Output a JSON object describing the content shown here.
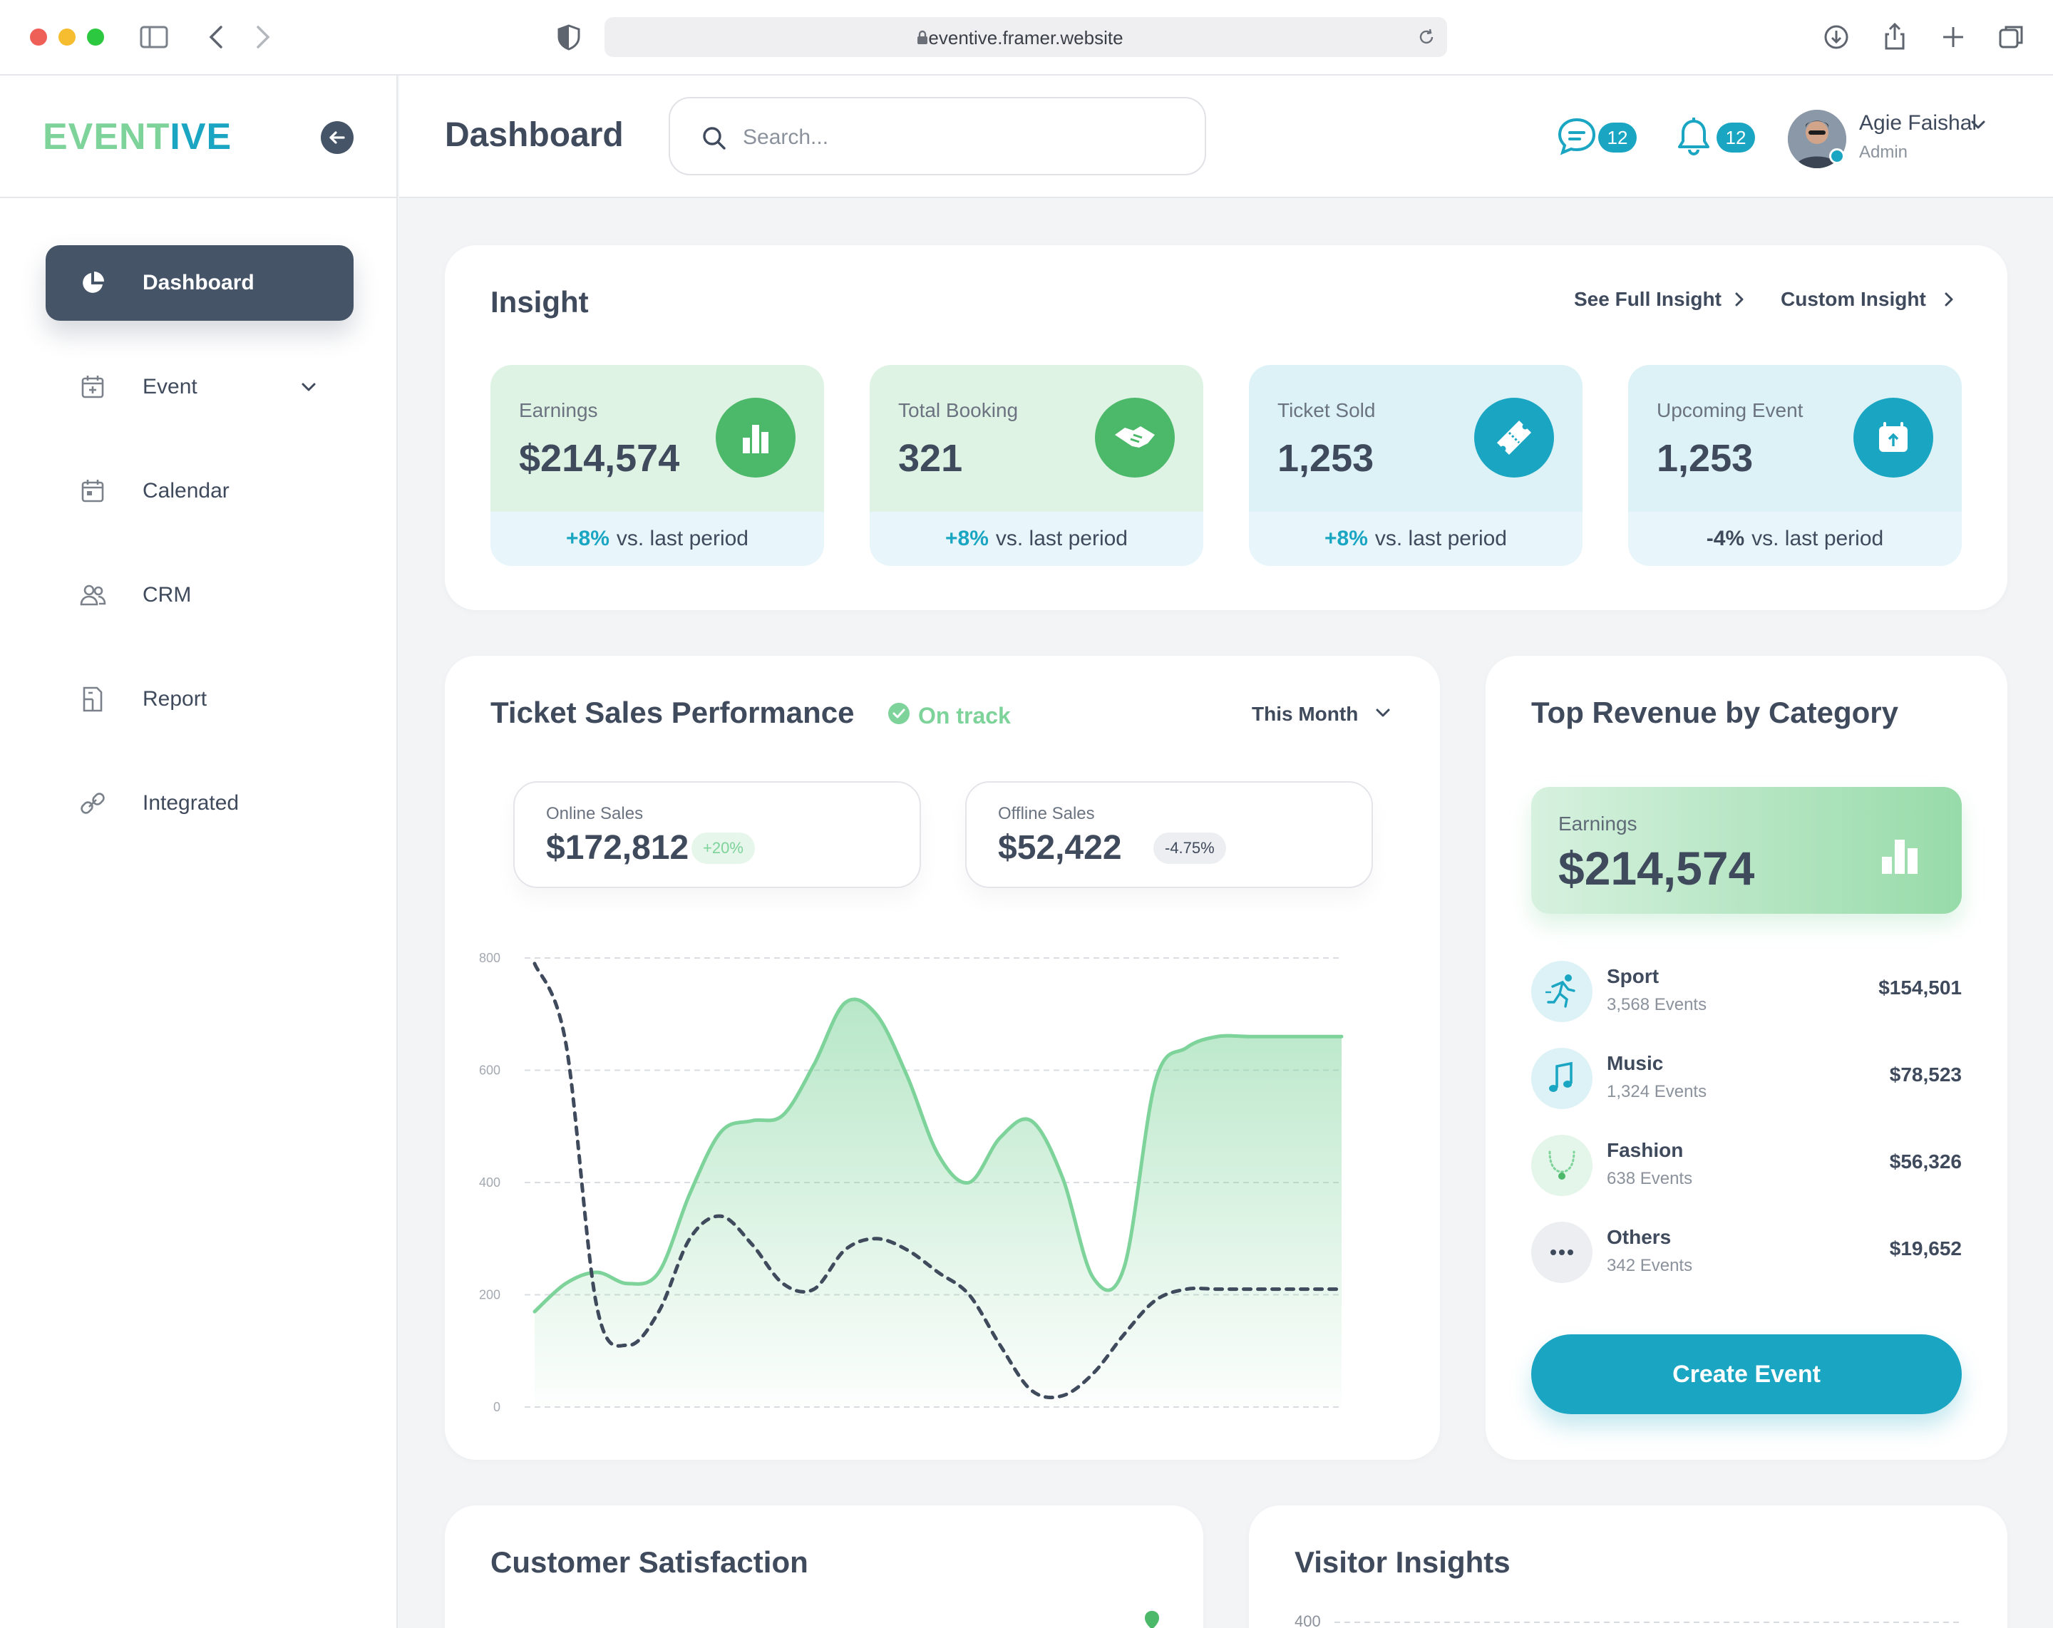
{
  "browser": {
    "url": "eventive.framer.website"
  },
  "logo": {
    "part1": "EVENT",
    "part2": "IVE"
  },
  "sidebar": {
    "items": [
      {
        "label": "Dashboard",
        "icon": "pie-chart-icon",
        "active": true
      },
      {
        "label": "Event",
        "icon": "calendar-plus-icon",
        "has_dropdown": true
      },
      {
        "label": "Calendar",
        "icon": "calendar-icon"
      },
      {
        "label": "CRM",
        "icon": "users-icon"
      },
      {
        "label": "Report",
        "icon": "report-icon"
      },
      {
        "label": "Integrated",
        "icon": "link-icon"
      }
    ]
  },
  "header": {
    "title": "Dashboard",
    "search_placeholder": "Search...",
    "messages_count": "12",
    "notifications_count": "12",
    "user_name": "Agie Faishal",
    "user_role": "Admin"
  },
  "insight": {
    "title": "Insight",
    "link_full": "See Full Insight",
    "link_custom": "Custom Insight",
    "stats": [
      {
        "label": "Earnings",
        "value": "$214,574",
        "change": "+8%",
        "suffix": "vs. last period",
        "icon": "bar-chart-icon",
        "color": "#4cb86a"
      },
      {
        "label": "Total Booking",
        "value": "321",
        "change": "+8%",
        "suffix": "vs. last period",
        "icon": "handshake-icon",
        "color": "#4cb86a"
      },
      {
        "label": "Ticket Sold",
        "value": "1,253",
        "change": "+8%",
        "suffix": "vs. last period",
        "icon": "ticket-icon",
        "color": "#1aa6c2"
      },
      {
        "label": "Upcoming Event",
        "value": "1,253",
        "change": "-4%",
        "suffix": "vs. last period",
        "icon": "calendar-upload-icon",
        "color": "#1aa6c2"
      }
    ]
  },
  "sales": {
    "title": "Ticket Sales Performance",
    "status": "On track",
    "period": "This Month",
    "online_label": "Online Sales",
    "online_value": "$172,812",
    "online_change": "+20%",
    "offline_label": "Offline Sales",
    "offline_value": "$52,422",
    "offline_change": "-4.75%"
  },
  "chart_data": {
    "type": "line",
    "title": "",
    "ylim": [
      0,
      800
    ],
    "y_ticks": [
      "0",
      "200",
      "400",
      "600",
      "800"
    ],
    "x": [
      0,
      1,
      2,
      3,
      4,
      5,
      6,
      7,
      8,
      9,
      10,
      11,
      12,
      13,
      14,
      15,
      16,
      17,
      18,
      19,
      20,
      21,
      22,
      23,
      24,
      25,
      26
    ],
    "series": [
      {
        "style": "area-solid",
        "color": "#7dd39a",
        "values": [
          170,
          220,
          240,
          220,
          240,
          380,
          490,
          510,
          520,
          610,
          720,
          700,
          590,
          450,
          400,
          480,
          510,
          410,
          230,
          250,
          580,
          640,
          660,
          660,
          660,
          660,
          660
        ]
      },
      {
        "style": "dashed",
        "color": "#3f4a5c",
        "values": [
          790,
          650,
          180,
          110,
          170,
          300,
          340,
          290,
          220,
          210,
          280,
          300,
          280,
          240,
          200,
          110,
          30,
          20,
          60,
          130,
          190,
          210,
          210,
          210,
          210,
          210,
          210
        ]
      }
    ]
  },
  "revenue": {
    "title": "Top Revenue by Category",
    "hero_label": "Earnings",
    "hero_value": "$214,574",
    "categories": [
      {
        "name": "Sport",
        "events": "3,568 Events",
        "amount": "$154,501",
        "icon": "running-icon"
      },
      {
        "name": "Music",
        "events": "1,324 Events",
        "amount": "$78,523",
        "icon": "music-note-icon"
      },
      {
        "name": "Fashion",
        "events": "638 Events",
        "amount": "$56,326",
        "icon": "necklace-icon"
      },
      {
        "name": "Others",
        "events": "342 Events",
        "amount": "$19,652",
        "icon": "more-dots-icon"
      }
    ],
    "create_label": "Create Event"
  },
  "bottom": {
    "satisfaction_title": "Customer Satisfaction",
    "visitor_title": "Visitor Insights",
    "visitor_tick": "400"
  }
}
